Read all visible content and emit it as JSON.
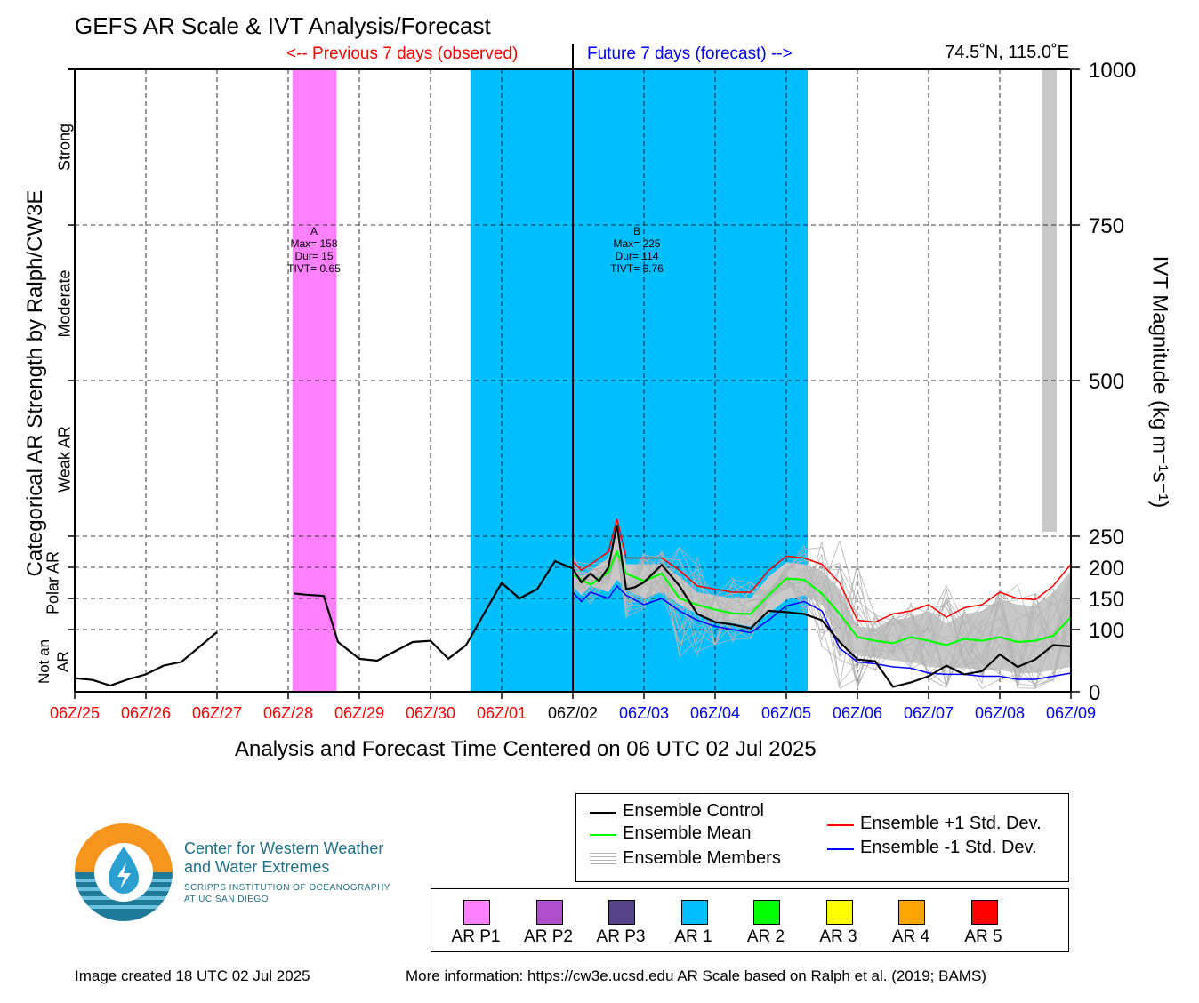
{
  "title": "GEFS AR Scale & IVT Analysis/Forecast",
  "observed_label": "<-- Previous 7 days (observed)",
  "forecast_label": "Future 7 days (forecast) -->",
  "location": "74.5˚N, 115.0˚E",
  "left_axis_label": "Categorical AR Strength by Ralph/CW3E",
  "right_axis_label": "IVT Magnitude (kg m⁻¹s⁻¹)",
  "x_axis_label": "Analysis and Forecast Time Centered on 06 UTC 02 Jul 2025",
  "categories": {
    "not_an_ar_1": "Not an",
    "not_an_ar_2": "AR",
    "polar_ar_1": "Polar AR",
    "weak_ar": "Weak AR",
    "moderate": "Moderate",
    "strong": "Strong"
  },
  "annotations": {
    "A": {
      "id": "A",
      "max": "Max= 158",
      "dur": "Dur= 15",
      "tivt": "TIVT= 0.65"
    },
    "B": {
      "id": "B",
      "max": "Max= 225",
      "dur": "Dur= 114",
      "tivt": "TIVT= 6.76"
    }
  },
  "legend": {
    "control": "Ensemble Control",
    "mean": "Ensemble Mean",
    "members": "Ensemble Members",
    "plus_std": "Ensemble +1 Std. Dev.",
    "minus_std": "Ensemble -1 Std. Dev."
  },
  "ar_scale": [
    {
      "label": "AR P1",
      "color": "#ff80ff"
    },
    {
      "label": "AR P2",
      "color": "#b04fcc"
    },
    {
      "label": "AR P3",
      "color": "#574389"
    },
    {
      "label": "AR 1",
      "color": "#00bfff"
    },
    {
      "label": "AR 2",
      "color": "#00ff00"
    },
    {
      "label": "AR 3",
      "color": "#ffff00"
    },
    {
      "label": "AR 4",
      "color": "#ffa500"
    },
    {
      "label": "AR 5",
      "color": "#ff0000"
    }
  ],
  "logo": {
    "line1": "Center for Western Weather",
    "line2": "and Water Extremes",
    "line3": "SCRIPPS INSTITUTION OF OCEANOGRAPHY",
    "line4": "AT UC SAN DIEGO"
  },
  "footer_left": "Image created 18 UTC 02 Jul 2025",
  "footer_right": "More information: https://cw3e.ucsd.edu AR Scale based on Ralph et al. (2019; BAMS)",
  "chart_data": {
    "type": "line",
    "xlabel": "Analysis and Forecast Time Centered on 06 UTC 02 Jul 2025",
    "ylabel": "IVT Magnitude (kg m⁻¹s⁻¹)",
    "ylim": [
      0,
      1000
    ],
    "y_ticks": [
      0,
      100,
      150,
      200,
      250,
      500,
      750,
      1000
    ],
    "x_unit": "days relative to 06Z/25",
    "x_ticks": [
      {
        "label": "06Z/25",
        "color": "#ff0000"
      },
      {
        "label": "06Z/26",
        "color": "#ff0000"
      },
      {
        "label": "06Z/27",
        "color": "#ff0000"
      },
      {
        "label": "06Z/28",
        "color": "#ff0000"
      },
      {
        "label": "06Z/29",
        "color": "#ff0000"
      },
      {
        "label": "06Z/30",
        "color": "#ff0000"
      },
      {
        "label": "06Z/01",
        "color": "#ff0000"
      },
      {
        "label": "06Z/02",
        "color": "#000000"
      },
      {
        "label": "06Z/03",
        "color": "#0000ff"
      },
      {
        "label": "06Z/04",
        "color": "#0000ff"
      },
      {
        "label": "06Z/05",
        "color": "#0000ff"
      },
      {
        "label": "06Z/06",
        "color": "#0000ff"
      },
      {
        "label": "06Z/07",
        "color": "#0000ff"
      },
      {
        "label": "06Z/08",
        "color": "#0000ff"
      },
      {
        "label": "06Z/09",
        "color": "#0000ff"
      }
    ],
    "ar_periods": [
      {
        "start": 3.06,
        "end": 3.68,
        "color": "#ff80ff",
        "label": "A"
      },
      {
        "start": 5.56,
        "end": 10.3,
        "color": "#00bfff",
        "label": "B"
      }
    ],
    "gray_period": {
      "start": 13.8,
      "end": 14.0,
      "color": "#c8c8c8"
    },
    "control": {
      "name": "Ensemble Control",
      "color": "#000000",
      "segments": [
        [
          [
            0,
            22
          ],
          [
            0.25,
            19
          ],
          [
            0.5,
            10
          ],
          [
            0.75,
            20
          ],
          [
            1,
            28
          ],
          [
            1.25,
            42
          ],
          [
            1.5,
            48
          ],
          [
            1.75,
            72
          ],
          [
            2,
            96
          ]
        ],
        [
          [
            3.08,
            158
          ],
          [
            3.25,
            156
          ],
          [
            3.5,
            154
          ],
          [
            3.7,
            80
          ],
          [
            4,
            53
          ],
          [
            4.25,
            50
          ],
          [
            4.5,
            65
          ],
          [
            4.75,
            80
          ],
          [
            5,
            82
          ],
          [
            5.25,
            53
          ],
          [
            5.5,
            75
          ],
          [
            6,
            175
          ],
          [
            6.25,
            150
          ],
          [
            6.5,
            165
          ],
          [
            6.75,
            210
          ],
          [
            7,
            198
          ]
        ],
        [
          [
            7,
            198
          ],
          [
            7.12,
            176
          ],
          [
            7.25,
            190
          ],
          [
            7.37,
            178
          ],
          [
            7.5,
            200
          ],
          [
            7.62,
            268
          ],
          [
            7.75,
            165
          ],
          [
            7.87,
            168
          ],
          [
            8,
            176
          ],
          [
            8.25,
            204
          ],
          [
            8.5,
            170
          ],
          [
            8.75,
            125
          ],
          [
            9,
            112
          ],
          [
            9.25,
            108
          ],
          [
            9.5,
            102
          ],
          [
            9.75,
            130
          ],
          [
            10,
            128
          ],
          [
            10.25,
            125
          ],
          [
            10.5,
            115
          ],
          [
            10.75,
            80
          ],
          [
            11,
            52
          ],
          [
            11.25,
            49
          ],
          [
            11.5,
            8
          ],
          [
            11.75,
            15
          ],
          [
            12,
            25
          ],
          [
            12.25,
            42
          ],
          [
            12.5,
            28
          ],
          [
            12.75,
            33
          ],
          [
            13,
            60
          ],
          [
            13.25,
            40
          ],
          [
            13.5,
            52
          ],
          [
            13.75,
            75
          ],
          [
            14,
            73
          ]
        ]
      ]
    },
    "mean": {
      "name": "Ensemble Mean",
      "color": "#00ff00",
      "values": [
        [
          7,
          188
        ],
        [
          7.25,
          172
        ],
        [
          7.5,
          192
        ],
        [
          7.62,
          225
        ],
        [
          7.75,
          190
        ],
        [
          8,
          178
        ],
        [
          8.25,
          190
        ],
        [
          8.5,
          150
        ],
        [
          8.75,
          140
        ],
        [
          9,
          132
        ],
        [
          9.25,
          126
        ],
        [
          9.5,
          125
        ],
        [
          9.75,
          155
        ],
        [
          10,
          182
        ],
        [
          10.25,
          180
        ],
        [
          10.5,
          158
        ],
        [
          10.75,
          125
        ],
        [
          11,
          88
        ],
        [
          11.25,
          82
        ],
        [
          11.5,
          78
        ],
        [
          11.75,
          88
        ],
        [
          12,
          82
        ],
        [
          12.25,
          75
        ],
        [
          12.5,
          85
        ],
        [
          12.75,
          82
        ],
        [
          13,
          88
        ],
        [
          13.25,
          80
        ],
        [
          13.5,
          82
        ],
        [
          13.75,
          90
        ],
        [
          14,
          120
        ]
      ]
    },
    "plus_std": {
      "name": "Ensemble +1 Std. Dev.",
      "color": "#ff0000",
      "values": [
        [
          7,
          210
        ],
        [
          7.12,
          195
        ],
        [
          7.25,
          205
        ],
        [
          7.5,
          225
        ],
        [
          7.62,
          278
        ],
        [
          7.75,
          215
        ],
        [
          8,
          215
        ],
        [
          8.25,
          215
        ],
        [
          8.5,
          195
        ],
        [
          8.75,
          170
        ],
        [
          9,
          165
        ],
        [
          9.25,
          160
        ],
        [
          9.5,
          160
        ],
        [
          9.75,
          195
        ],
        [
          10,
          218
        ],
        [
          10.25,
          215
        ],
        [
          10.5,
          205
        ],
        [
          10.75,
          175
        ],
        [
          11,
          115
        ],
        [
          11.25,
          112
        ],
        [
          11.5,
          125
        ],
        [
          11.75,
          130
        ],
        [
          12,
          140
        ],
        [
          12.25,
          120
        ],
        [
          12.5,
          135
        ],
        [
          12.75,
          140
        ],
        [
          13,
          160
        ],
        [
          13.25,
          150
        ],
        [
          13.5,
          148
        ],
        [
          13.75,
          170
        ],
        [
          14,
          205
        ]
      ]
    },
    "minus_std": {
      "name": "Ensemble -1 Std. Dev.",
      "color": "#0000ff",
      "values": [
        [
          7,
          160
        ],
        [
          7.12,
          145
        ],
        [
          7.25,
          160
        ],
        [
          7.5,
          150
        ],
        [
          7.62,
          170
        ],
        [
          7.75,
          155
        ],
        [
          8,
          140
        ],
        [
          8.25,
          150
        ],
        [
          8.5,
          130
        ],
        [
          8.75,
          115
        ],
        [
          9,
          105
        ],
        [
          9.25,
          100
        ],
        [
          9.5,
          95
        ],
        [
          9.75,
          115
        ],
        [
          10,
          138
        ],
        [
          10.25,
          145
        ],
        [
          10.5,
          130
        ],
        [
          10.75,
          70
        ],
        [
          11,
          48
        ],
        [
          11.25,
          45
        ],
        [
          11.5,
          40
        ],
        [
          11.75,
          38
        ],
        [
          12,
          30
        ],
        [
          12.25,
          28
        ],
        [
          12.5,
          28
        ],
        [
          12.75,
          25
        ],
        [
          13,
          25
        ],
        [
          13.25,
          20
        ],
        [
          13.5,
          20
        ],
        [
          13.75,
          25
        ],
        [
          14,
          30
        ]
      ]
    },
    "members": {
      "name": "Ensemble Members",
      "color": "#b4b4b4",
      "count": 20
    }
  }
}
